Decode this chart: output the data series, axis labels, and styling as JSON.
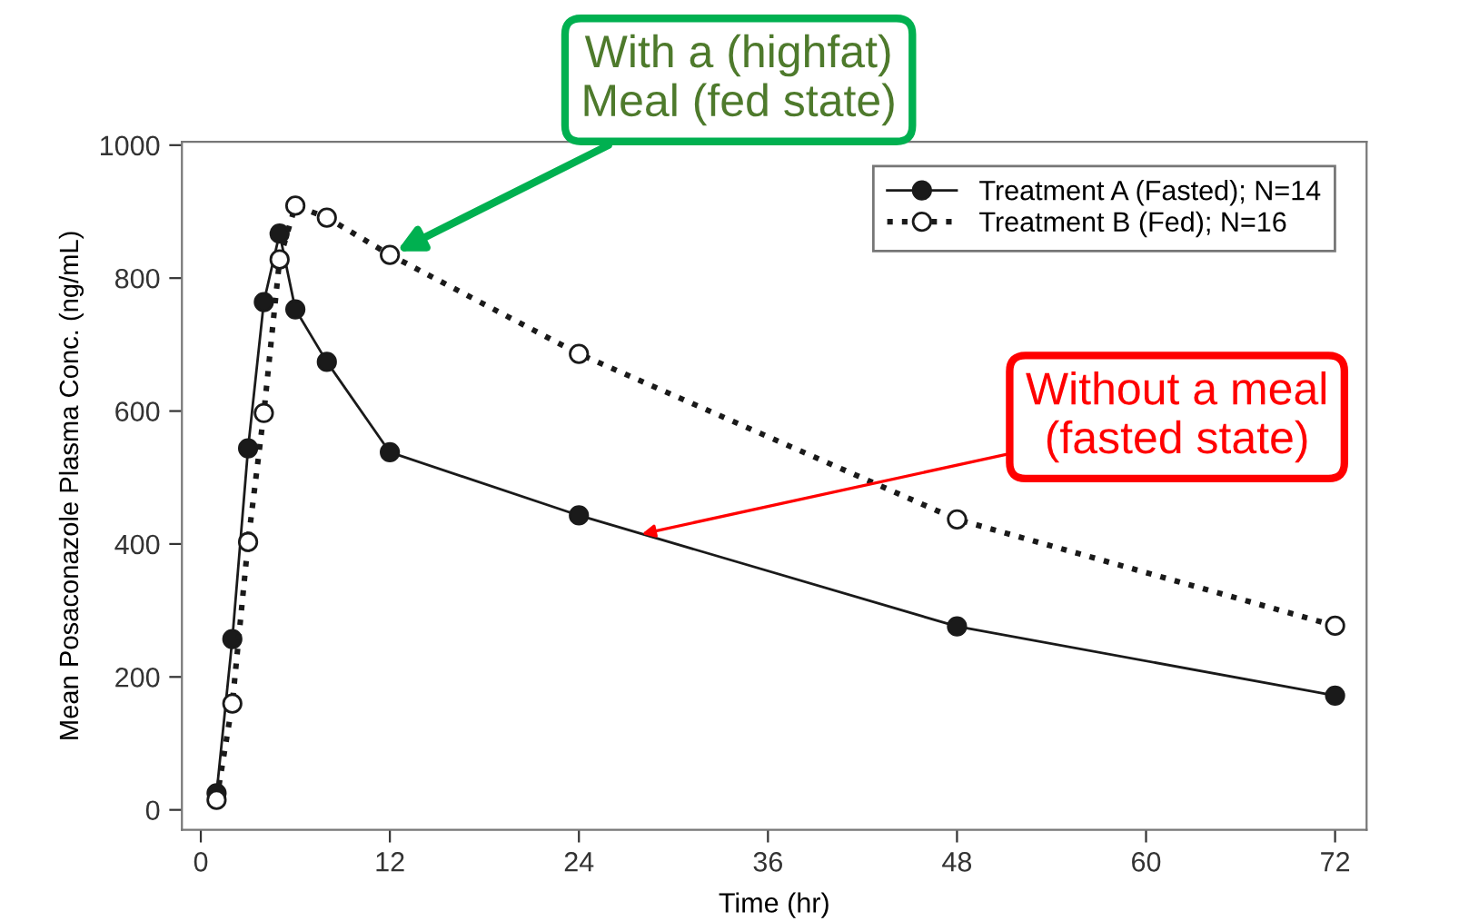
{
  "chart_data": {
    "type": "line",
    "xlabel": "Time (hr)",
    "ylabel": "Mean Posaconazole Plasma Conc. (ng/mL)",
    "xlim": [
      -1.2,
      74
    ],
    "ylim": [
      -30,
      1005
    ],
    "xticks": [
      0,
      12,
      24,
      36,
      48,
      60,
      72
    ],
    "yticks": [
      0,
      200,
      400,
      600,
      800,
      1000
    ],
    "grid": false,
    "legend": "top right",
    "series": [
      {
        "name": "Treatment A (Fasted); N=14",
        "color": "#1a1a1a",
        "marker": "circle",
        "line_style": "solid",
        "x": [
          1,
          2,
          3,
          4,
          5,
          6,
          8,
          12,
          24,
          48,
          72
        ],
        "values": [
          25,
          257,
          544,
          764,
          867,
          753,
          674,
          538,
          443,
          276,
          172
        ]
      },
      {
        "name": "Treatment B (Fed); N=16",
        "color": "#1a1a1a",
        "marker": "circle",
        "line_style": "dotted",
        "x": [
          1,
          2,
          3,
          4,
          5,
          6,
          8,
          12,
          24,
          48,
          72
        ],
        "values": [
          15,
          160,
          403,
          597,
          828,
          909,
          891,
          835,
          686,
          437,
          277
        ]
      }
    ],
    "annotations": [
      {
        "text": "With a (highfat)\nMeal (fed state)",
        "x": 12,
        "y": 835
      },
      {
        "text": "Without a meal\n(fasted state)",
        "x": 28,
        "y": 415
      }
    ]
  }
}
